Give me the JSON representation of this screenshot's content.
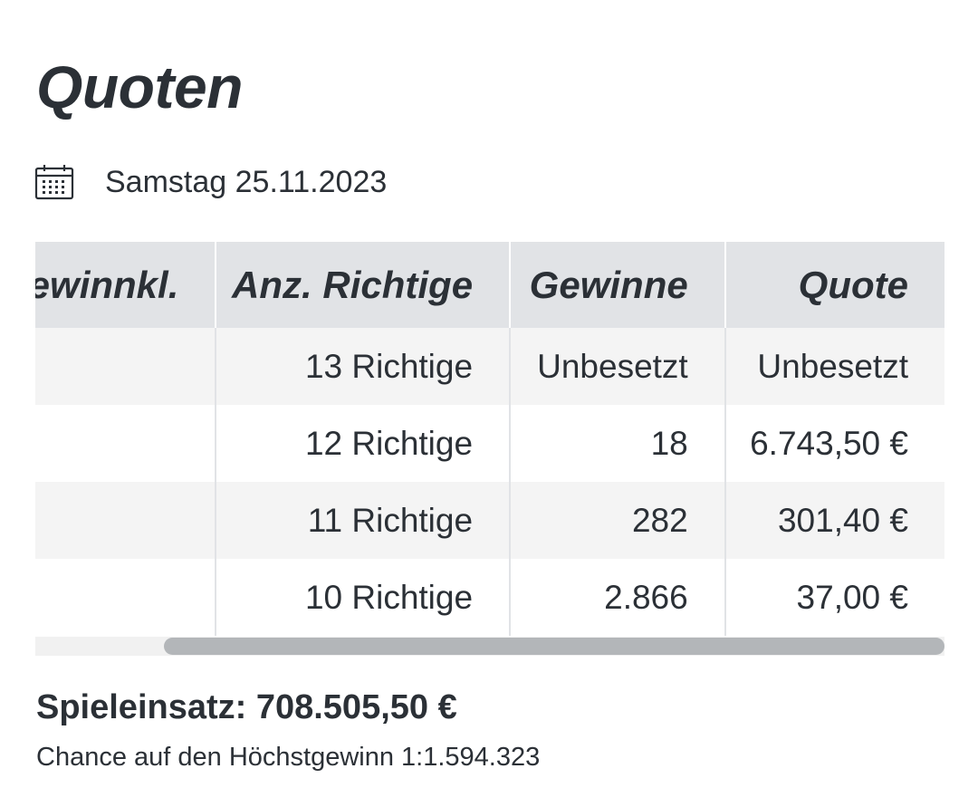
{
  "page": {
    "title": "Quoten"
  },
  "date": {
    "label": "Samstag 25.11.2023",
    "icon": "calendar-icon"
  },
  "table": {
    "headers": [
      "Gewinnkl.",
      "Anz. Richtige",
      "Gewinne",
      "Quote"
    ],
    "rows": [
      {
        "class": "",
        "matches": "13 Richtige",
        "winners": "Unbesetzt",
        "quote": "Unbesetzt"
      },
      {
        "class": "",
        "matches": "12 Richtige",
        "winners": "18",
        "quote": "6.743,50 €"
      },
      {
        "class": "",
        "matches": "11 Richtige",
        "winners": "282",
        "quote": "301,40 €"
      },
      {
        "class": "",
        "matches": "10 Richtige",
        "winners": "2.866",
        "quote": "37,00 €"
      }
    ]
  },
  "summary": {
    "stake": "Spieleinsatz: 708.505,50 €",
    "chance": "Chance auf den Höchstgewinn 1:1.594.323"
  },
  "colors": {
    "text": "#2b3036",
    "header_bg": "#e1e3e6",
    "row_alt_bg": "#f4f4f4",
    "scroll_thumb": "#b3b6b9"
  }
}
